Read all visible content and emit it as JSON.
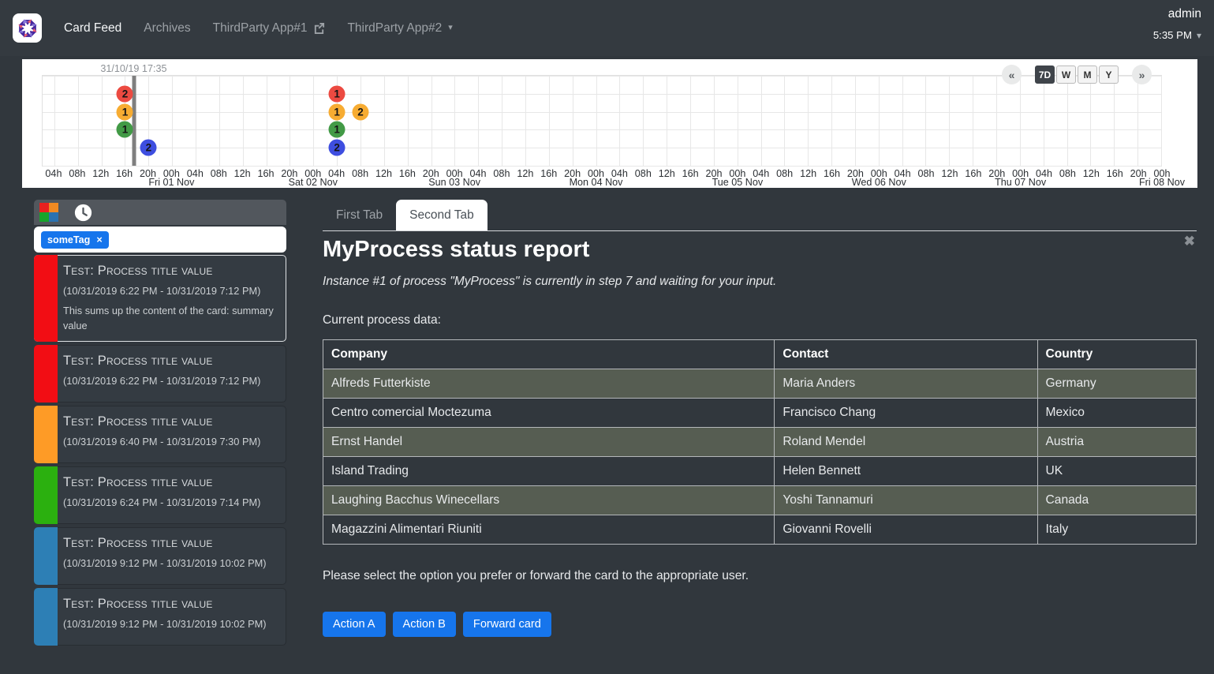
{
  "theme": {
    "accent_blue": "#1675ec",
    "page_bg": "#31373d",
    "surface_bg": "#343a40",
    "table_stripe": "#565d52"
  },
  "navbar": {
    "items": [
      {
        "id": "card-feed",
        "label": "Card Feed",
        "active": true
      },
      {
        "id": "archives",
        "label": "Archives",
        "active": false
      },
      {
        "id": "thirdparty-app1",
        "label": "ThirdParty App#1",
        "active": false,
        "icon": "external-link"
      },
      {
        "id": "thirdparty-app2",
        "label": "ThirdParty App#2",
        "active": false,
        "icon": "caret-down"
      }
    ],
    "user": {
      "name": "admin",
      "time": "5:35 PM",
      "caret": "▾"
    }
  },
  "timeline": {
    "marker_label": "31/10/19 17:35",
    "prev_label": "«",
    "next_label": "»",
    "range_buttons": [
      {
        "label": "7D",
        "active": true
      },
      {
        "label": "W",
        "active": false
      },
      {
        "label": "M",
        "active": false
      },
      {
        "label": "Y",
        "active": false
      }
    ],
    "chart_data": {
      "type": "scatter",
      "description": "Bubble timeline of card counts per severity row over a 7-day window; hour 0 = 31 Oct 2019 02:00",
      "total_hours": 190,
      "tick_start_hour": 2,
      "tick_step_hours": 4,
      "tick_labels": [
        "04h",
        "08h",
        "12h",
        "16h",
        "20h",
        "00h",
        "04h",
        "08h",
        "12h",
        "16h",
        "20h",
        "00h",
        "04h",
        "08h",
        "12h",
        "16h",
        "20h",
        "00h",
        "04h",
        "08h",
        "12h",
        "16h",
        "20h",
        "00h",
        "04h",
        "08h",
        "12h",
        "16h",
        "20h",
        "00h",
        "04h",
        "08h",
        "12h",
        "16h",
        "20h",
        "00h",
        "04h",
        "08h",
        "12h",
        "16h",
        "20h",
        "00h",
        "04h",
        "08h",
        "12h",
        "16h",
        "20h",
        "00h"
      ],
      "day_labels": [
        {
          "tick_index": 5,
          "label": "Fri 01 Nov"
        },
        {
          "tick_index": 11,
          "label": "Sat 02 Nov"
        },
        {
          "tick_index": 17,
          "label": "Sun 03 Nov"
        },
        {
          "tick_index": 23,
          "label": "Mon 04 Nov"
        },
        {
          "tick_index": 29,
          "label": "Tue 05 Nov"
        },
        {
          "tick_index": 35,
          "label": "Wed 06 Nov"
        },
        {
          "tick_index": 41,
          "label": "Thu 07 Nov"
        },
        {
          "tick_index": 47,
          "label": "Fri 08 Nov"
        }
      ],
      "severity_rows": [
        "alarm",
        "action",
        "compliant",
        "information"
      ],
      "severity_colors": {
        "alarm": "#ec4a41",
        "action": "#f7ac32",
        "compliant": "#429a46",
        "information": "#3e4ee0"
      },
      "marker_hour": 15.58,
      "bubbles": [
        {
          "hour": 14,
          "severity": "alarm",
          "count": 2
        },
        {
          "hour": 14,
          "severity": "action",
          "count": 1
        },
        {
          "hour": 14,
          "severity": "compliant",
          "count": 1
        },
        {
          "hour": 18,
          "severity": "information",
          "count": 2
        },
        {
          "hour": 50,
          "severity": "alarm",
          "count": 1
        },
        {
          "hour": 50,
          "severity": "action",
          "count": 1
        },
        {
          "hour": 54,
          "severity": "action",
          "count": 2
        },
        {
          "hour": 50,
          "severity": "compliant",
          "count": 1
        },
        {
          "hour": 50,
          "severity": "information",
          "count": 2
        }
      ]
    }
  },
  "sidebar": {
    "header": {
      "legend_colors": [
        "#e9211f",
        "#f28a21",
        "#17a42b",
        "#2b72b0"
      ]
    },
    "filter": {
      "tag": "someTag",
      "remove_glyph": "×"
    },
    "cards": [
      {
        "color": "#f20d14",
        "severity": "alarm",
        "selected": true,
        "title": "Test: Process title value",
        "dates": "(10/31/2019 6:22 PM - 10/31/2019 7:12 PM)",
        "summary": "This sums up the content of the card: summary value"
      },
      {
        "color": "#f20d14",
        "severity": "alarm",
        "selected": false,
        "title": "Test: Process title value",
        "dates": "(10/31/2019 6:22 PM - 10/31/2019 7:12 PM)",
        "summary": ""
      },
      {
        "color": "#fe9b26",
        "severity": "action",
        "selected": false,
        "title": "Test: Process title value",
        "dates": "(10/31/2019 6:40 PM - 10/31/2019 7:30 PM)",
        "summary": ""
      },
      {
        "color": "#2bb00f",
        "severity": "compliant",
        "selected": false,
        "title": "Test: Process title value",
        "dates": "(10/31/2019 6:24 PM - 10/31/2019 7:14 PM)",
        "summary": ""
      },
      {
        "color": "#2d7fb5",
        "severity": "information",
        "selected": false,
        "title": "Test: Process title value",
        "dates": "(10/31/2019 9:12 PM - 10/31/2019 10:02 PM)",
        "summary": ""
      },
      {
        "color": "#2d7fb5",
        "severity": "information",
        "selected": false,
        "title": "Test: Process title value",
        "dates": "(10/31/2019 9:12 PM - 10/31/2019 10:02 PM)",
        "summary": ""
      }
    ]
  },
  "main": {
    "tabs": [
      {
        "label": "First Tab",
        "active": false
      },
      {
        "label": "Second Tab",
        "active": true
      }
    ],
    "close_glyph": "✖",
    "title": "MyProcess status report",
    "subtitle": "Instance #1 of process \"MyProcess\" is currently in step 7 and waiting for your input.",
    "data_label": "Current process data:",
    "table": {
      "headers": [
        "Company",
        "Contact",
        "Country"
      ],
      "rows": [
        [
          "Alfreds Futterkiste",
          "Maria Anders",
          "Germany"
        ],
        [
          "Centro comercial Moctezuma",
          "Francisco Chang",
          "Mexico"
        ],
        [
          "Ernst Handel",
          "Roland Mendel",
          "Austria"
        ],
        [
          "Island Trading",
          "Helen Bennett",
          "UK"
        ],
        [
          "Laughing Bacchus Winecellars",
          "Yoshi Tannamuri",
          "Canada"
        ],
        [
          "Magazzini Alimentari Riuniti",
          "Giovanni Rovelli",
          "Italy"
        ]
      ]
    },
    "prompt": "Please select the option you prefer or forward the card to the appropriate user.",
    "actions": [
      {
        "label": "Action A"
      },
      {
        "label": "Action B"
      },
      {
        "label": "Forward card"
      }
    ]
  }
}
